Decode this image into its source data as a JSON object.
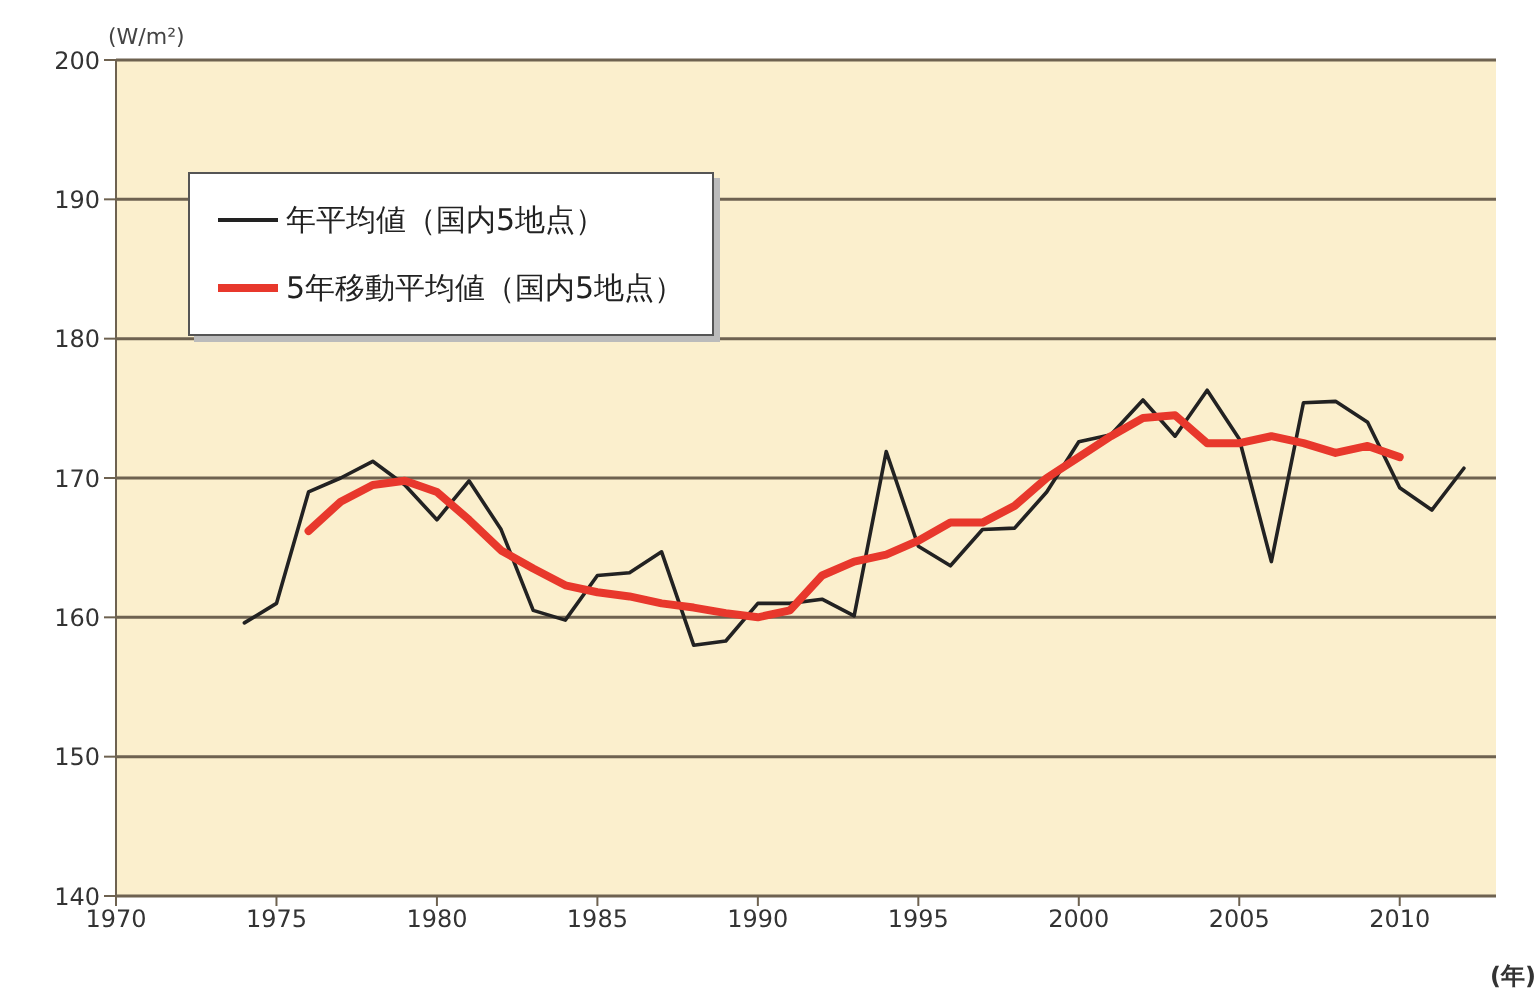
{
  "chart_data": {
    "type": "line",
    "ylabel": "(W/m²)",
    "xlabel": "(年)",
    "xlim": [
      1970,
      2013
    ],
    "xticks": [
      1970,
      1975,
      1980,
      1985,
      1990,
      1995,
      2000,
      2005,
      2010
    ],
    "ylim": [
      140,
      200
    ],
    "yticks": [
      140,
      150,
      160,
      170,
      180,
      190,
      200
    ],
    "grid": "y",
    "legend": "top left",
    "line_style": "solid",
    "marker": "none",
    "series": [
      {
        "name": "年平均値（国内5地点）",
        "color": "#222222",
        "x": [
          1974,
          1975,
          1976,
          1977,
          1978,
          1979,
          1980,
          1981,
          1982,
          1983,
          1984,
          1985,
          1986,
          1987,
          1988,
          1989,
          1990,
          1991,
          1992,
          1993,
          1994,
          1995,
          1996,
          1997,
          1998,
          1999,
          2000,
          2001,
          2002,
          2003,
          2004,
          2005,
          2006,
          2007,
          2008,
          2009,
          2010,
          2011,
          2012
        ],
        "values": [
          159.6,
          161,
          169,
          170,
          171.2,
          169.5,
          167,
          169.8,
          166.3,
          160.5,
          159.8,
          163,
          163.2,
          164.7,
          158,
          158.3,
          161,
          161,
          161.3,
          160.1,
          171.9,
          165.1,
          163.7,
          166.3,
          166.4,
          169,
          172.6,
          173.1,
          175.6,
          173,
          176.3,
          172.8,
          164,
          175.4,
          175.5,
          174,
          169.3,
          167.7,
          170.7
        ]
      },
      {
        "name": "5年移動平均値（国内5地点）",
        "color": "#e8382c",
        "x": [
          1976,
          1977,
          1978,
          1979,
          1980,
          1981,
          1982,
          1983,
          1984,
          1985,
          1986,
          1987,
          1988,
          1989,
          1990,
          1991,
          1992,
          1993,
          1994,
          1995,
          1996,
          1997,
          1998,
          1999,
          2000,
          2001,
          2002,
          2003,
          2004,
          2005,
          2006,
          2007,
          2008,
          2009,
          2010
        ],
        "values": [
          166.2,
          168.3,
          169.5,
          169.8,
          169,
          167,
          164.8,
          163.5,
          162.3,
          161.8,
          161.5,
          161,
          160.7,
          160.3,
          160,
          160.5,
          163,
          164,
          164.5,
          165.5,
          166.8,
          166.8,
          168,
          170,
          171.5,
          173,
          174.3,
          174.5,
          172.5,
          172.5,
          173,
          172.5,
          171.8,
          172.3,
          171.5
        ]
      }
    ]
  }
}
